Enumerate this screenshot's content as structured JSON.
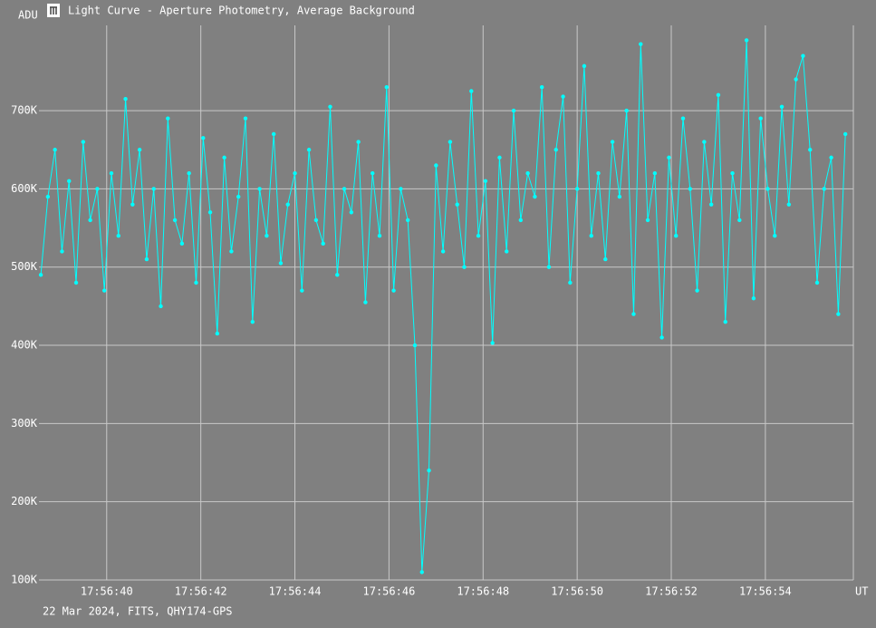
{
  "chart_data": {
    "type": "line",
    "title": "Light Curve - Aperture Photometry, Average Background",
    "y_label": "ADU",
    "x_label": "UT",
    "footer": "22 Mar 2024, FITS, QHY174-GPS",
    "xlim": [
      38.56,
      55.87
    ],
    "ylim": [
      100000,
      809000
    ],
    "xticks": [
      {
        "value": 40,
        "label": "17:56:40"
      },
      {
        "value": 42,
        "label": "17:56:42"
      },
      {
        "value": 44,
        "label": "17:56:44"
      },
      {
        "value": 46,
        "label": "17:56:46"
      },
      {
        "value": 48,
        "label": "17:56:48"
      },
      {
        "value": 50,
        "label": "17:56:50"
      },
      {
        "value": 52,
        "label": "17:56:52"
      },
      {
        "value": 54,
        "label": "17:56:54"
      }
    ],
    "yticks": [
      {
        "value": 100000,
        "label": "100K"
      },
      {
        "value": 200000,
        "label": "200K"
      },
      {
        "value": 300000,
        "label": "300K"
      },
      {
        "value": 400000,
        "label": "400K"
      },
      {
        "value": 500000,
        "label": "500K"
      },
      {
        "value": 600000,
        "label": "600K"
      },
      {
        "value": 700000,
        "label": "700K"
      }
    ],
    "grid": true,
    "series": [
      {
        "color": "#00ffff",
        "x": [
          38.6,
          38.75,
          38.9,
          39.05,
          39.2,
          39.35,
          39.5,
          39.65,
          39.8,
          39.95,
          40.1,
          40.25,
          40.4,
          40.55,
          40.7,
          40.85,
          41.0,
          41.15,
          41.3,
          41.45,
          41.6,
          41.75,
          41.9,
          42.05,
          42.2,
          42.35,
          42.5,
          42.65,
          42.8,
          42.95,
          43.1,
          43.25,
          43.4,
          43.55,
          43.7,
          43.85,
          44.0,
          44.15,
          44.3,
          44.45,
          44.6,
          44.75,
          44.9,
          45.05,
          45.2,
          45.35,
          45.5,
          45.65,
          45.8,
          45.95,
          46.1,
          46.25,
          46.4,
          46.55,
          46.7,
          46.85,
          47.0,
          47.15,
          47.3,
          47.45,
          47.6,
          47.75,
          47.9,
          48.05,
          48.2,
          48.35,
          48.5,
          48.65,
          48.8,
          48.95,
          49.1,
          49.25,
          49.4,
          49.55,
          49.7,
          49.85,
          50.0,
          50.15,
          50.3,
          50.45,
          50.6,
          50.75,
          50.9,
          51.05,
          51.2,
          51.35,
          51.5,
          51.65,
          51.8,
          51.95,
          52.1,
          52.25,
          52.4,
          52.55,
          52.7,
          52.85,
          53.0,
          53.15,
          53.3,
          53.45,
          53.6,
          53.75,
          53.9,
          54.05,
          54.2,
          54.35,
          54.5,
          54.65,
          54.8,
          54.95,
          55.1,
          55.25,
          55.4,
          55.55,
          55.7
        ],
        "values": [
          490000,
          590000,
          650000,
          520000,
          610000,
          480000,
          660000,
          560000,
          600000,
          470000,
          620000,
          540000,
          715000,
          580000,
          650000,
          510000,
          600000,
          450000,
          690000,
          560000,
          530000,
          620000,
          480000,
          665000,
          570000,
          415000,
          640000,
          520000,
          590000,
          690000,
          430000,
          600000,
          540000,
          670000,
          505000,
          580000,
          620000,
          470000,
          650000,
          560000,
          530000,
          705000,
          490000,
          600000,
          570000,
          660000,
          455000,
          620000,
          540000,
          730000,
          470000,
          600000,
          560000,
          400000,
          110000,
          240000,
          630000,
          520000,
          660000,
          580000,
          500000,
          725000,
          540000,
          610000,
          403000,
          640000,
          520000,
          700000,
          560000,
          620000,
          590000,
          730000,
          500000,
          650000,
          718000,
          480000,
          600000,
          757000,
          540000,
          620000,
          510000,
          660000,
          590000,
          700000,
          440000,
          785000,
          560000,
          620000,
          410000,
          640000,
          540000,
          690000,
          600000,
          470000,
          660000,
          580000,
          720000,
          430000,
          620000,
          560000,
          790000,
          460000,
          690000,
          600000,
          540000,
          705000,
          580000,
          740000,
          770000,
          650000,
          480000,
          600000,
          640000,
          440000,
          670000
        ]
      }
    ]
  }
}
